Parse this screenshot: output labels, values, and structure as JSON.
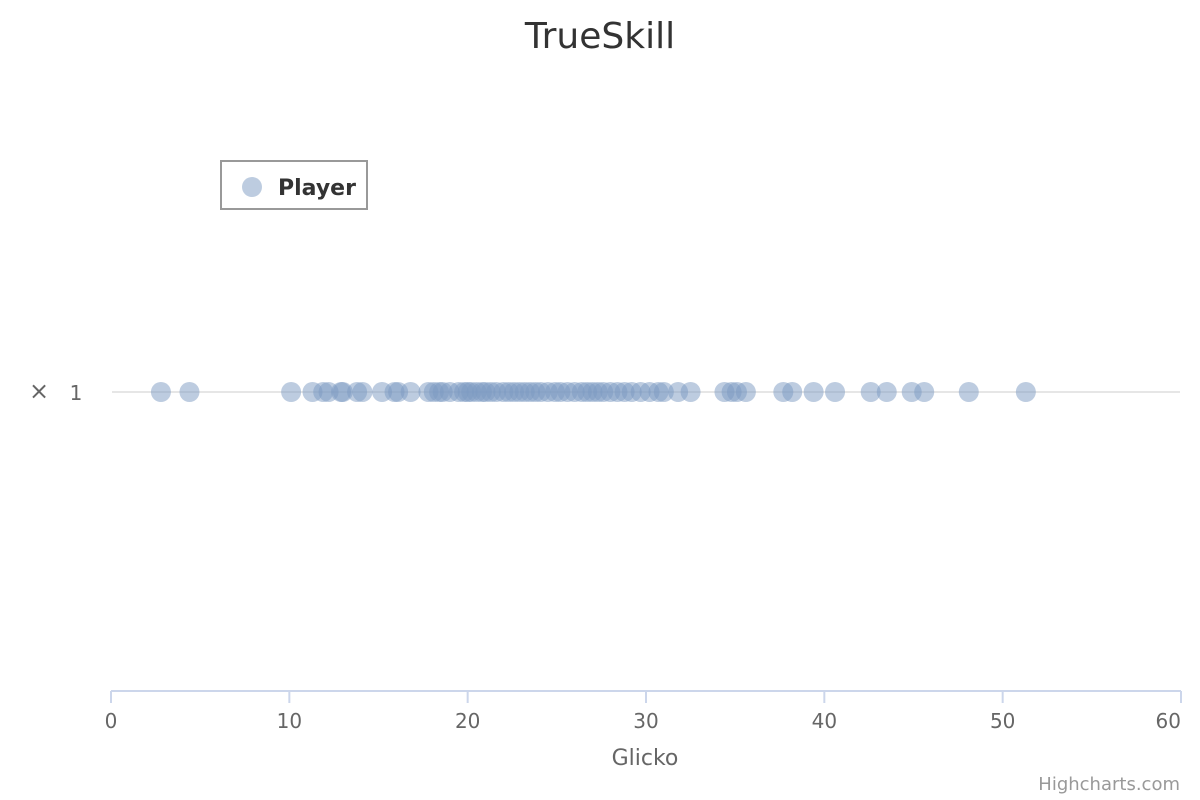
{
  "chart_data": {
    "type": "scatter",
    "title": "TrueSkill",
    "xlabel": "Glicko",
    "ylabel": "",
    "xlim": [
      0,
      60
    ],
    "x_ticks": [
      "0",
      "10",
      "20",
      "30",
      "40",
      "50",
      "60"
    ],
    "y_categories": [
      "1"
    ],
    "y_axis_label_symbol": "×",
    "legend_position": "top-left",
    "grid": false,
    "series": [
      {
        "name": "Player",
        "color": "#7c9ac1",
        "x": [
          2.8,
          4.4,
          10.1,
          11.3,
          11.9,
          12.2,
          12.9,
          13.0,
          13.8,
          14.1,
          15.2,
          15.9,
          16.1,
          16.8,
          17.8,
          18.1,
          18.4,
          18.6,
          19.0,
          19.5,
          19.8,
          20.0,
          20.2,
          20.5,
          20.8,
          21.0,
          21.3,
          21.6,
          22.0,
          22.3,
          22.6,
          22.9,
          23.2,
          23.5,
          23.8,
          24.1,
          24.5,
          24.9,
          25.2,
          25.6,
          26.0,
          26.4,
          26.7,
          27.0,
          27.3,
          27.6,
          28.0,
          28.4,
          28.8,
          29.2,
          29.7,
          30.2,
          30.7,
          31.0,
          31.8,
          32.5,
          34.4,
          34.8,
          35.1,
          35.6,
          37.7,
          38.2,
          39.4,
          40.6,
          42.6,
          43.5,
          44.9,
          45.6,
          48.1,
          51.3
        ],
        "y": [
          1,
          1,
          1,
          1,
          1,
          1,
          1,
          1,
          1,
          1,
          1,
          1,
          1,
          1,
          1,
          1,
          1,
          1,
          1,
          1,
          1,
          1,
          1,
          1,
          1,
          1,
          1,
          1,
          1,
          1,
          1,
          1,
          1,
          1,
          1,
          1,
          1,
          1,
          1,
          1,
          1,
          1,
          1,
          1,
          1,
          1,
          1,
          1,
          1,
          1,
          1,
          1,
          1,
          1,
          1,
          1,
          1,
          1,
          1,
          1,
          1,
          1,
          1,
          1,
          1,
          1,
          1,
          1,
          1,
          1
        ]
      }
    ],
    "credits": "Highcharts.com"
  }
}
